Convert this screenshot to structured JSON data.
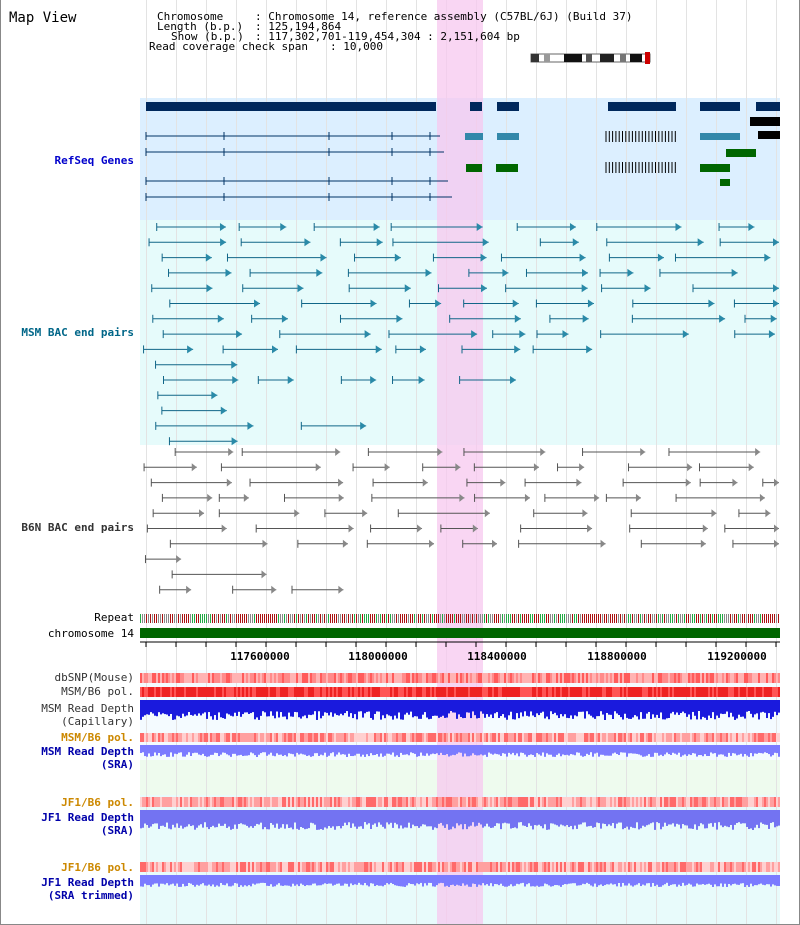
{
  "view_title": "Map View",
  "info": {
    "chromosome_key": "Chromosome",
    "chromosome_value": ": Chromosome 14, reference assembly (C57BL/6J) (Build 37)",
    "length_key": "Length (b.p.)",
    "length_value": ": 125,194,864",
    "show_key": "Show (b.p.)",
    "show_value": ": 117,302,701-119,454,304 : 2,151,604 bp",
    "coverage_key": "Read coverage check span",
    "coverage_value": ": 10,000"
  },
  "tracks": {
    "refseq": "RefSeq Genes",
    "msm_bac": "MSM BAC end pairs",
    "b6n_bac": "B6N BAC end pairs",
    "repeat": "Repeat",
    "chromosome": "chromosome 14",
    "dbsnp": "dbSNP(Mouse)",
    "msm_b6_pol": "MSM/B6 pol.",
    "msm_depth_cap_1": "MSM Read Depth",
    "msm_depth_cap_2": "(Capillary)",
    "msm_b6_pol_2": "MSM/B6 pol.",
    "msm_depth_sra_1": "MSM Read Depth",
    "msm_depth_sra_2": "(SRA)",
    "jf1_b6_pol": "JF1/B6 pol.",
    "jf1_depth_sra_1": "JF1 Read Depth",
    "jf1_depth_sra_2": "(SRA)",
    "jf1_b6_pol_2": "JF1/B6 pol.",
    "jf1_depth_trim_1": "JF1 Read Depth",
    "jf1_depth_trim_2": "(SRA trimmed)"
  },
  "ruler": {
    "ticks": [
      "117600000",
      "118000000",
      "118400000",
      "118800000",
      "119200000"
    ]
  },
  "colors": {
    "refseq_label": "#0000cc",
    "msm_label": "#006688",
    "b6n_label": "#333333",
    "pol_label": "#cc8800",
    "depth_label": "#0000aa",
    "highlight": "#f7c8ef"
  }
}
